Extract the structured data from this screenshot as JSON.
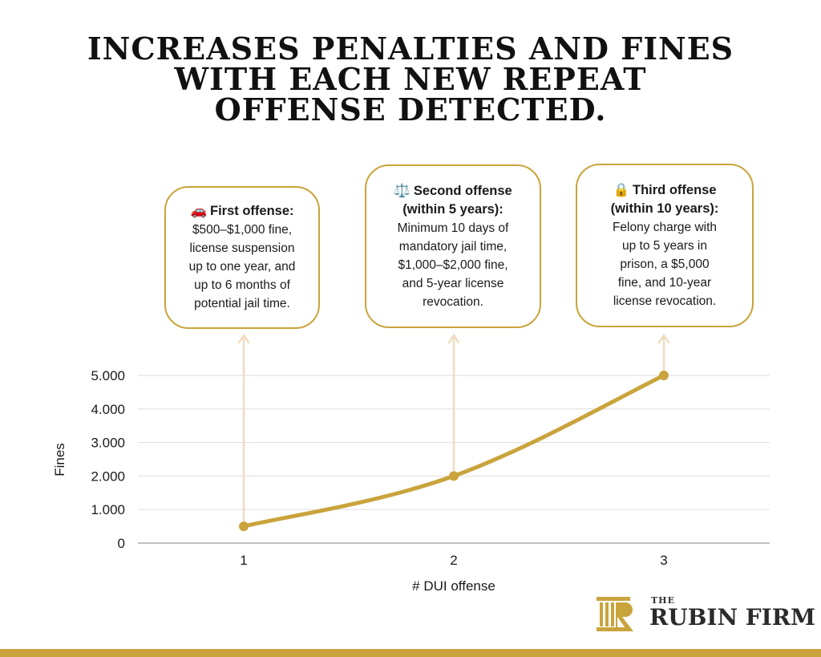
{
  "title": {
    "line1": "INCREASES PENALTIES AND FINES",
    "line2": "WITH EACH NEW REPEAT",
    "line3": "OFFENSE DETECTED."
  },
  "callouts": [
    {
      "icon": "car-icon",
      "emoji": "🚗",
      "heading": "First offense:",
      "heading2": "",
      "lines": [
        "$500–$1,000 fine,",
        "license suspension",
        "up to one year, and",
        "up to 6 months of",
        "potential jail time."
      ]
    },
    {
      "icon": "scales-icon",
      "emoji": "⚖️",
      "heading": "Second offense",
      "heading2": "(within 5 years):",
      "lines": [
        "Minimum 10 days of",
        "mandatory jail time,",
        "$1,000–$2,000 fine,",
        "and 5-year license",
        "revocation."
      ]
    },
    {
      "icon": "lock-icon",
      "emoji": "🔒",
      "heading": "Third offense",
      "heading2": "(within 10 years):",
      "lines": [
        "Felony charge with",
        "up to 5 years in",
        "prison, a $5,000",
        "fine, and 10-year",
        "license revocation."
      ]
    }
  ],
  "chart_data": {
    "type": "line",
    "x": [
      1,
      2,
      3
    ],
    "values": [
      500,
      2000,
      5000
    ],
    "xlabel": "# DUI offense",
    "ylabel": "Fines",
    "ylim": [
      0,
      5000
    ],
    "yticks": [
      0,
      1000,
      2000,
      3000,
      4000,
      5000
    ],
    "ytick_labels": [
      "0",
      "1.000",
      "2.000",
      "3.000",
      "4.000",
      "5.000"
    ],
    "xtick_labels": [
      "1",
      "2",
      "3"
    ],
    "grid": true,
    "line_color": "#c9a43c",
    "arrow_color": "#f0dcc0"
  },
  "logo": {
    "the": "THE",
    "name": "RUBIN FIRM",
    "color": "#c9a43c"
  }
}
